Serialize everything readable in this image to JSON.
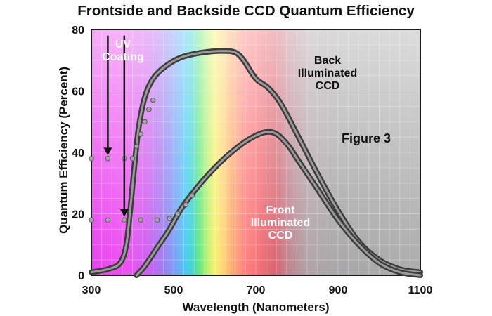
{
  "chart_data": {
    "type": "line",
    "title": "Frontside and Backside CCD Quantum Efficiency",
    "xlabel": "Wavelength (Nanometers)",
    "ylabel": "Quantum Efficiency (Percent)",
    "xlim": [
      300,
      1100
    ],
    "ylim": [
      0,
      80
    ],
    "x_ticks": [
      300,
      500,
      700,
      900,
      1100
    ],
    "y_ticks": [
      0,
      20,
      40,
      60,
      80
    ],
    "grid": true,
    "background": "visible light spectrum gradient (violet to red) with gray infrared region",
    "figure_label": "Figure 3",
    "series": [
      {
        "label_lines": [
          "Back",
          "Illuminated",
          "CCD"
        ],
        "x": [
          300,
          340,
          370,
          385,
          395,
          405,
          415,
          430,
          450,
          480,
          520,
          570,
          620,
          650,
          670,
          700,
          730,
          760,
          800,
          850,
          900,
          950,
          1000,
          1050,
          1100
        ],
        "y": [
          1,
          2,
          4,
          10,
          22,
          36,
          48,
          58,
          64,
          68,
          71,
          72.5,
          73,
          72.5,
          70,
          64,
          61,
          56,
          46,
          33,
          21,
          11,
          5,
          2,
          1
        ]
      },
      {
        "label_lines": [
          "Front",
          "Illuminated",
          "CCD"
        ],
        "x": [
          410,
          430,
          460,
          490,
          520,
          560,
          600,
          640,
          680,
          720,
          750,
          780,
          800,
          850,
          900,
          950,
          1000,
          1050,
          1100
        ],
        "y": [
          0,
          3,
          9,
          15,
          22,
          29,
          35,
          40,
          44,
          46.5,
          46,
          42,
          38,
          28,
          18,
          10,
          4,
          1,
          0
        ]
      },
      {
        "label_lines": [
          "UV",
          "Coating"
        ],
        "dotted": true,
        "x": [
          300,
          340,
          380,
          400,
          410,
          420,
          430,
          440,
          450
        ],
        "y": [
          38,
          38,
          38,
          38,
          42,
          46,
          50,
          54,
          57
        ]
      },
      {
        "dotted": true,
        "x": [
          300,
          340,
          380,
          420,
          460,
          490,
          510,
          530,
          545
        ],
        "y": [
          18,
          18,
          18,
          18,
          18,
          18.5,
          20,
          23,
          26
        ]
      }
    ],
    "annotation_arrows": [
      {
        "x": 340,
        "y_from": 78,
        "y_to": 39
      },
      {
        "x": 380,
        "y_from": 78,
        "y_to": 19
      }
    ]
  }
}
